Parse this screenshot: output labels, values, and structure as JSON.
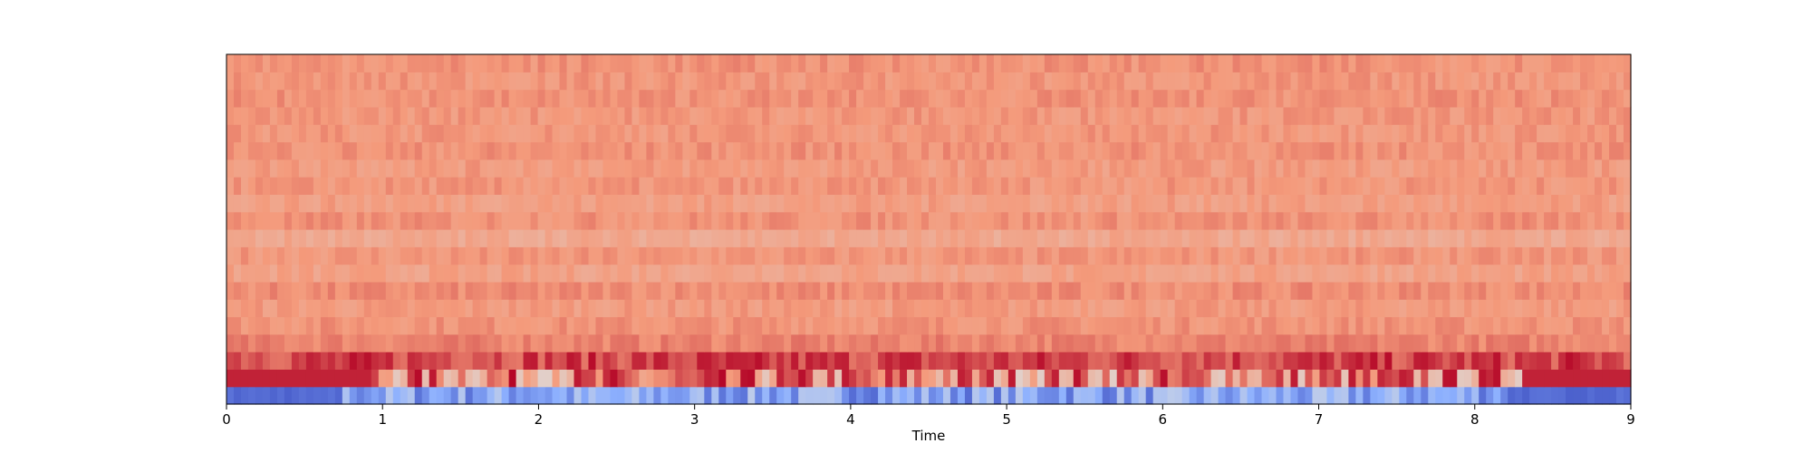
{
  "chart_data": {
    "type": "heatmap",
    "title": "",
    "xlabel": "Time",
    "ylabel": "",
    "xlim": [
      0,
      9
    ],
    "x_ticks": [
      0,
      1,
      2,
      3,
      4,
      5,
      6,
      7,
      8,
      9
    ],
    "x_tick_labels": [
      "0",
      "1",
      "2",
      "3",
      "4",
      "5",
      "6",
      "7",
      "8",
      "9"
    ],
    "n_coefficients": 20,
    "n_frames": 194,
    "colormap": "coolwarm",
    "grid": false,
    "legend": "none",
    "row_levels_bottom_to_top": [
      0.08,
      0.92,
      0.86,
      0.79,
      0.76,
      0.74,
      0.77,
      0.72,
      0.75,
      0.7,
      0.76,
      0.73,
      0.75,
      0.74,
      0.76,
      0.75,
      0.75,
      0.76,
      0.75,
      0.76
    ],
    "colors": {
      "high": "#b40426",
      "mid": "#dddddd",
      "low": "#3b4cc0"
    }
  }
}
